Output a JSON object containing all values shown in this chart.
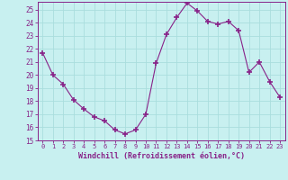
{
  "x": [
    0,
    1,
    2,
    3,
    4,
    5,
    6,
    7,
    8,
    9,
    10,
    11,
    12,
    13,
    14,
    15,
    16,
    17,
    18,
    19,
    20,
    21,
    22,
    23
  ],
  "y": [
    21.7,
    20.0,
    19.3,
    18.1,
    17.4,
    16.8,
    16.5,
    15.8,
    15.5,
    15.8,
    17.0,
    20.9,
    23.1,
    24.4,
    25.5,
    24.9,
    24.1,
    23.9,
    24.1,
    23.4,
    20.2,
    21.0,
    19.5,
    18.3
  ],
  "line_color": "#882288",
  "marker": "+",
  "marker_size": 4,
  "bg_color": "#c8f0f0",
  "grid_color": "#aadddd",
  "xlabel": "Windchill (Refroidissement éolien,°C)",
  "tick_color": "#882288",
  "ylim": [
    15,
    25.5
  ],
  "yticks": [
    15,
    16,
    17,
    18,
    19,
    20,
    21,
    22,
    23,
    24,
    25
  ],
  "xlim": [
    -0.5,
    23.5
  ],
  "xticks": [
    0,
    1,
    2,
    3,
    4,
    5,
    6,
    7,
    8,
    9,
    10,
    11,
    12,
    13,
    14,
    15,
    16,
    17,
    18,
    19,
    20,
    21,
    22,
    23
  ]
}
